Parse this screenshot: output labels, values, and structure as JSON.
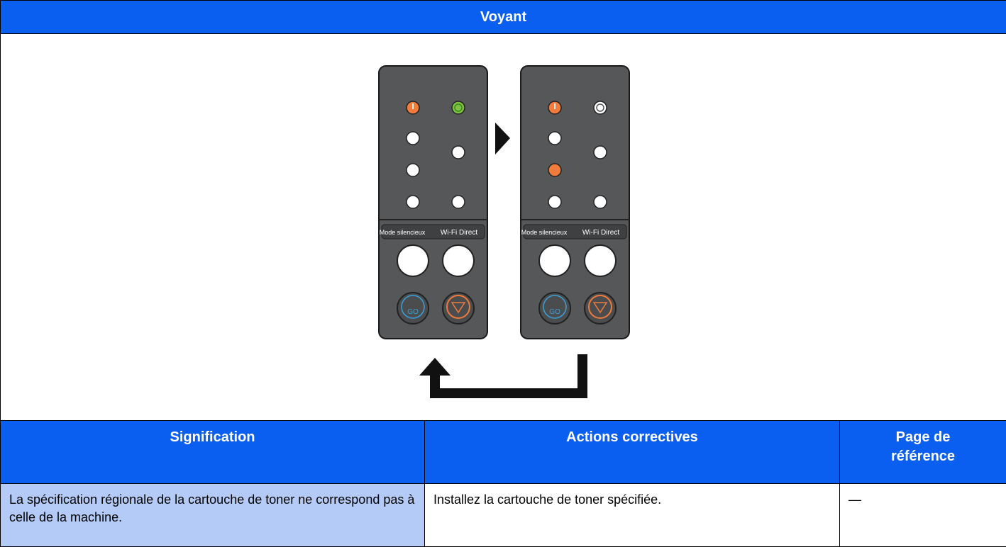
{
  "header": {
    "title": "Voyant"
  },
  "illustration": {
    "panels": [
      {
        "labels": [
          "Mode silencieux",
          "Wi-Fi Direct"
        ],
        "go": "GO"
      },
      {
        "labels": [
          "Mode silencieux",
          "Wi-Fi Direct"
        ],
        "go": "GO"
      }
    ]
  },
  "table": {
    "columns": [
      "Signification",
      "Actions correctives",
      "Page de référence"
    ],
    "rows": [
      [
        "La spécification régionale de la cartouche de toner ne correspond pas à celle de la machine.",
        "Installez la cartouche de toner spécifiée.",
        "—"
      ]
    ]
  }
}
